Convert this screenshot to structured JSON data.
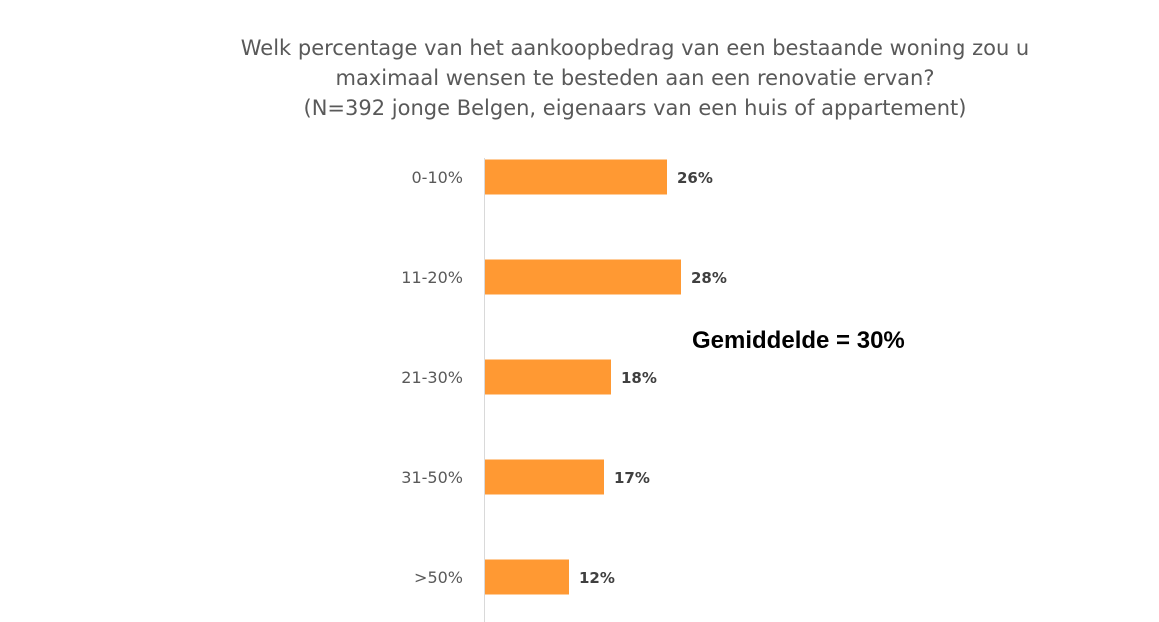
{
  "chart_data": {
    "type": "bar",
    "orientation": "horizontal",
    "title": [
      "Welk percentage van het aankoopbedrag van een bestaande woning zou u",
      "maximaal wensen te besteden aan een renovatie ervan?",
      "(N=392 jonge Belgen, eigenaars van een huis of appartement)"
    ],
    "categories": [
      "0-10%",
      "11-20%",
      "21-30%",
      "31-50%",
      ">50%"
    ],
    "values": [
      26,
      28,
      18,
      17,
      12
    ],
    "value_labels": [
      "26%",
      "28%",
      "18%",
      "17%",
      "12%"
    ],
    "unit": "%",
    "xlim": [
      0,
      100
    ],
    "grid": false,
    "legend": "none",
    "bar_color": "#FF9933",
    "annotation": "Gemiddelde = 30%"
  }
}
